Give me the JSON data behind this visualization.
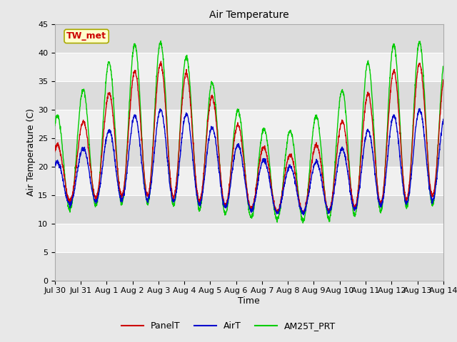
{
  "title": "Air Temperature",
  "xlabel": "Time",
  "ylabel": "Air Temperature (C)",
  "legend_label": "TW_met",
  "series_labels": [
    "PanelT",
    "AirT",
    "AM25T_PRT"
  ],
  "series_colors": [
    "#cc0000",
    "#0000cc",
    "#00cc00"
  ],
  "ylim": [
    0,
    45
  ],
  "yticks": [
    0,
    5,
    10,
    15,
    20,
    25,
    30,
    35,
    40,
    45
  ],
  "figsize": [
    6.4,
    4.8
  ],
  "dpi": 100,
  "fig_bg": "#e8e8e8",
  "plot_bg": "#f0f0f0",
  "band_dark": "#dcdcdc",
  "band_light": "#f0f0f0",
  "grid_color": "#ffffff",
  "title_fontsize": 10,
  "axis_label_fontsize": 9,
  "tick_fontsize": 8,
  "annotation_fontsize": 9,
  "legend_fontsize": 9,
  "linewidth": 1.0,
  "tick_labels": [
    "Jul 30",
    "Jul 31",
    "Aug 1",
    "Aug 2",
    "Aug 3",
    "Aug 4",
    "Aug 5",
    "Aug 6",
    "Aug 7",
    "Aug 8",
    "Aug 9",
    "Aug 10",
    "Aug 11",
    "Aug 12",
    "Aug 13",
    "Aug 14"
  ],
  "tick_positions": [
    0,
    1,
    2,
    3,
    4,
    5,
    6,
    7,
    8,
    9,
    10,
    11,
    12,
    13,
    14,
    15
  ]
}
